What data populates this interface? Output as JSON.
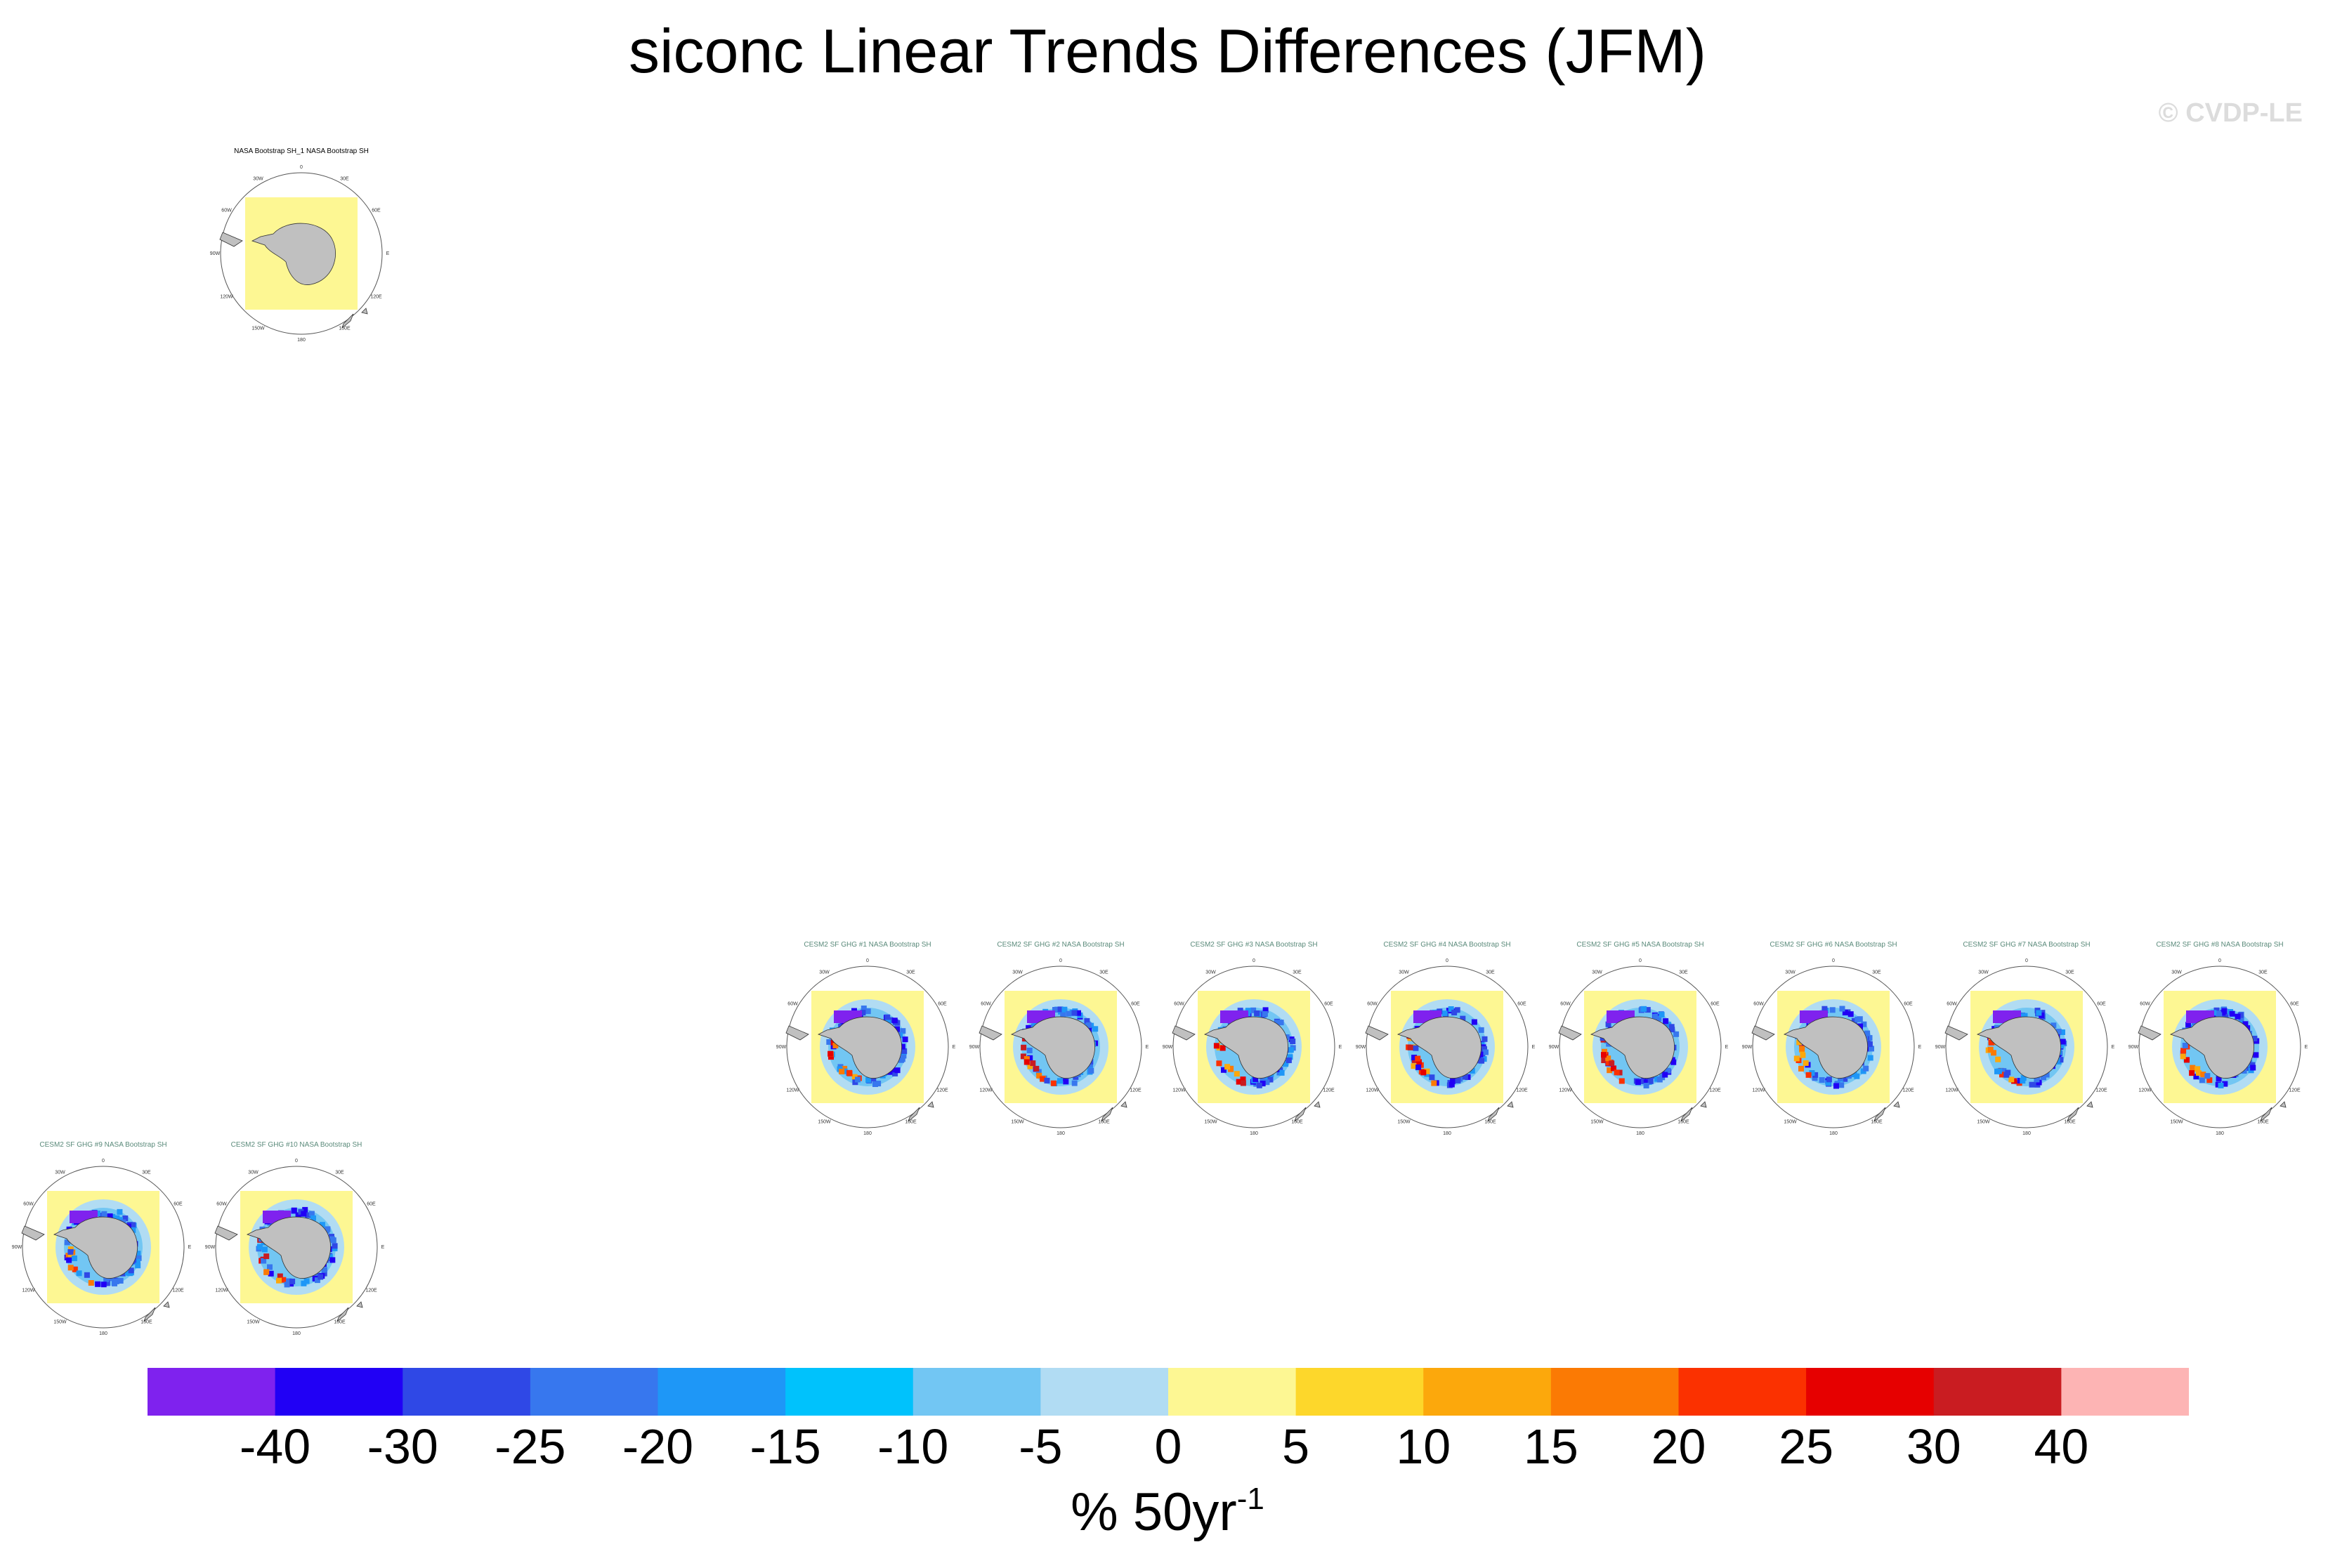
{
  "title": "siconc Linear Trends Differences (JFM)",
  "copyright": "© CVDP-LE",
  "colorbar": {
    "units_main": "% 50yr",
    "units_exp": "-1",
    "ticks": [
      "-40",
      "-30",
      "-25",
      "-20",
      "-15",
      "-10",
      "-5",
      "0",
      "5",
      "10",
      "15",
      "20",
      "25",
      "30",
      "40"
    ],
    "colors": [
      "#7f22ee",
      "#2100f5",
      "#2f48e6",
      "#3777ee",
      "#1e97f7",
      "#00c2fc",
      "#72c6f3",
      "#b1dcf3",
      "#fdf793",
      "#fdd72b",
      "#fca80c",
      "#fb7a04",
      "#fb3100",
      "#e60000",
      "#c91c21",
      "#fdb4b4"
    ]
  },
  "map_labels": {
    "top": "0",
    "top_right": "30E",
    "right_upper": "60E",
    "right": "E",
    "right_lower": "120E",
    "bottom_right": "150E",
    "bottom": "180",
    "bottom_left": "150W",
    "left_lower": "120W",
    "left": "90W",
    "left_upper": "60W",
    "top_left": "30W"
  },
  "panels": [
    {
      "title": "NASA Bootstrap SH_1 NASA Bootstrap SH",
      "kind": "obs"
    },
    {
      "title": "CESM2 SF GHG #1 NASA Bootstrap SH",
      "kind": "model"
    },
    {
      "title": "CESM2 SF GHG #2 NASA Bootstrap SH",
      "kind": "model"
    },
    {
      "title": "CESM2 SF GHG #3 NASA Bootstrap SH",
      "kind": "model"
    },
    {
      "title": "CESM2 SF GHG #4 NASA Bootstrap SH",
      "kind": "model"
    },
    {
      "title": "CESM2 SF GHG #5 NASA Bootstrap SH",
      "kind": "model"
    },
    {
      "title": "CESM2 SF GHG #6 NASA Bootstrap SH",
      "kind": "model"
    },
    {
      "title": "CESM2 SF GHG #7 NASA Bootstrap SH",
      "kind": "model"
    },
    {
      "title": "CESM2 SF GHG #8 NASA Bootstrap SH",
      "kind": "model"
    },
    {
      "title": "CESM2 SF GHG #9 NASA Bootstrap SH",
      "kind": "model"
    },
    {
      "title": "CESM2 SF GHG #10 NASA Bootstrap SH",
      "kind": "model"
    }
  ],
  "chart_data": {
    "type": "heatmap",
    "title": "siconc Linear Trends Differences (JFM)",
    "colorbar_label": "% 50yr-1",
    "levels": [
      -40,
      -30,
      -25,
      -20,
      -15,
      -10,
      -5,
      0,
      5,
      10,
      15,
      20,
      25,
      30,
      40
    ],
    "panels": [
      "NASA Bootstrap SH_1 NASA Bootstrap SH",
      "CESM2 SF GHG #1 NASA Bootstrap SH",
      "CESM2 SF GHG #2 NASA Bootstrap SH",
      "CESM2 SF GHG #3 NASA Bootstrap SH",
      "CESM2 SF GHG #4 NASA Bootstrap SH",
      "CESM2 SF GHG #5 NASA Bootstrap SH",
      "CESM2 SF GHG #6 NASA Bootstrap SH",
      "CESM2 SF GHG #7 NASA Bootstrap SH",
      "CESM2 SF GHG #8 NASA Bootstrap SH",
      "CESM2 SF GHG #9 NASA Bootstrap SH",
      "CESM2 SF GHG #10 NASA Bootstrap SH"
    ]
  }
}
